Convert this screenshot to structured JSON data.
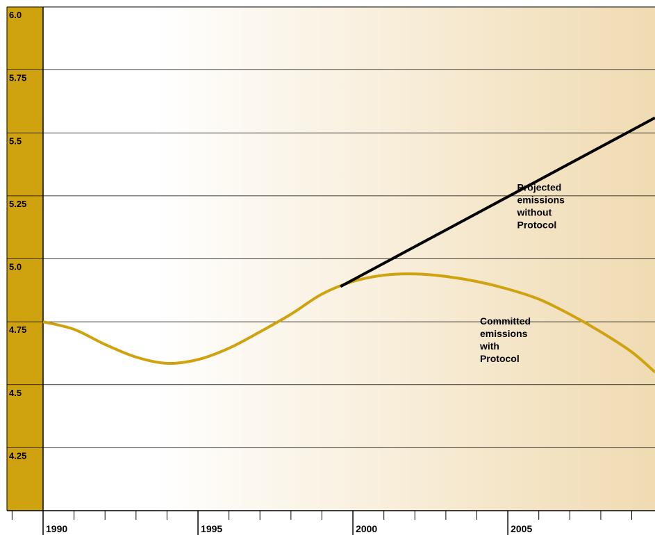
{
  "chart_data": {
    "type": "line",
    "title": "",
    "xlabel": "",
    "ylabel": "",
    "xlim": [
      1990,
      2009.75
    ],
    "ylim": [
      4.0,
      6.0
    ],
    "grid": true,
    "y_ticks": [
      4.25,
      4.5,
      4.75,
      5.0,
      5.25,
      5.5,
      5.75,
      6.0
    ],
    "y_tick_labels": [
      "4.25",
      "4.5",
      "4.75",
      "5.0",
      "5.25",
      "5.5",
      "5.75",
      "6.0"
    ],
    "x_ticks": [
      1990,
      1995,
      2000,
      2005
    ],
    "x_tick_labels": [
      "1990",
      "1995",
      "2000",
      "2005"
    ],
    "series": [
      {
        "key": "committed",
        "color": "#cfa30f",
        "x": [
          1990,
          1991,
          1992,
          1993,
          1994,
          1995,
          1996,
          1997,
          1998,
          1999,
          2000,
          2001,
          2002,
          2003,
          2004,
          2005,
          2006,
          2007,
          2008,
          2009,
          2009.75
        ],
        "y": [
          4.75,
          4.72,
          4.66,
          4.61,
          4.585,
          4.6,
          4.645,
          4.71,
          4.78,
          4.86,
          4.91,
          4.935,
          4.94,
          4.93,
          4.91,
          4.88,
          4.84,
          4.78,
          4.71,
          4.63,
          4.55
        ]
      },
      {
        "key": "projected",
        "color": "#000000",
        "x": [
          1999.6,
          2009.75
        ],
        "y": [
          4.89,
          5.56
        ]
      }
    ],
    "annotations": [
      {
        "key": "projected",
        "lines": [
          "Projected",
          "emissions",
          "without",
          "Protocol"
        ]
      },
      {
        "key": "committed",
        "lines": [
          "Committed",
          "emissions",
          "with",
          "Protocol"
        ]
      }
    ]
  },
  "colors": {
    "axis_band": "#cfa30f",
    "bg_left": "#ffffff",
    "bg_right": "#f0dbb2",
    "grid": "#000000"
  }
}
